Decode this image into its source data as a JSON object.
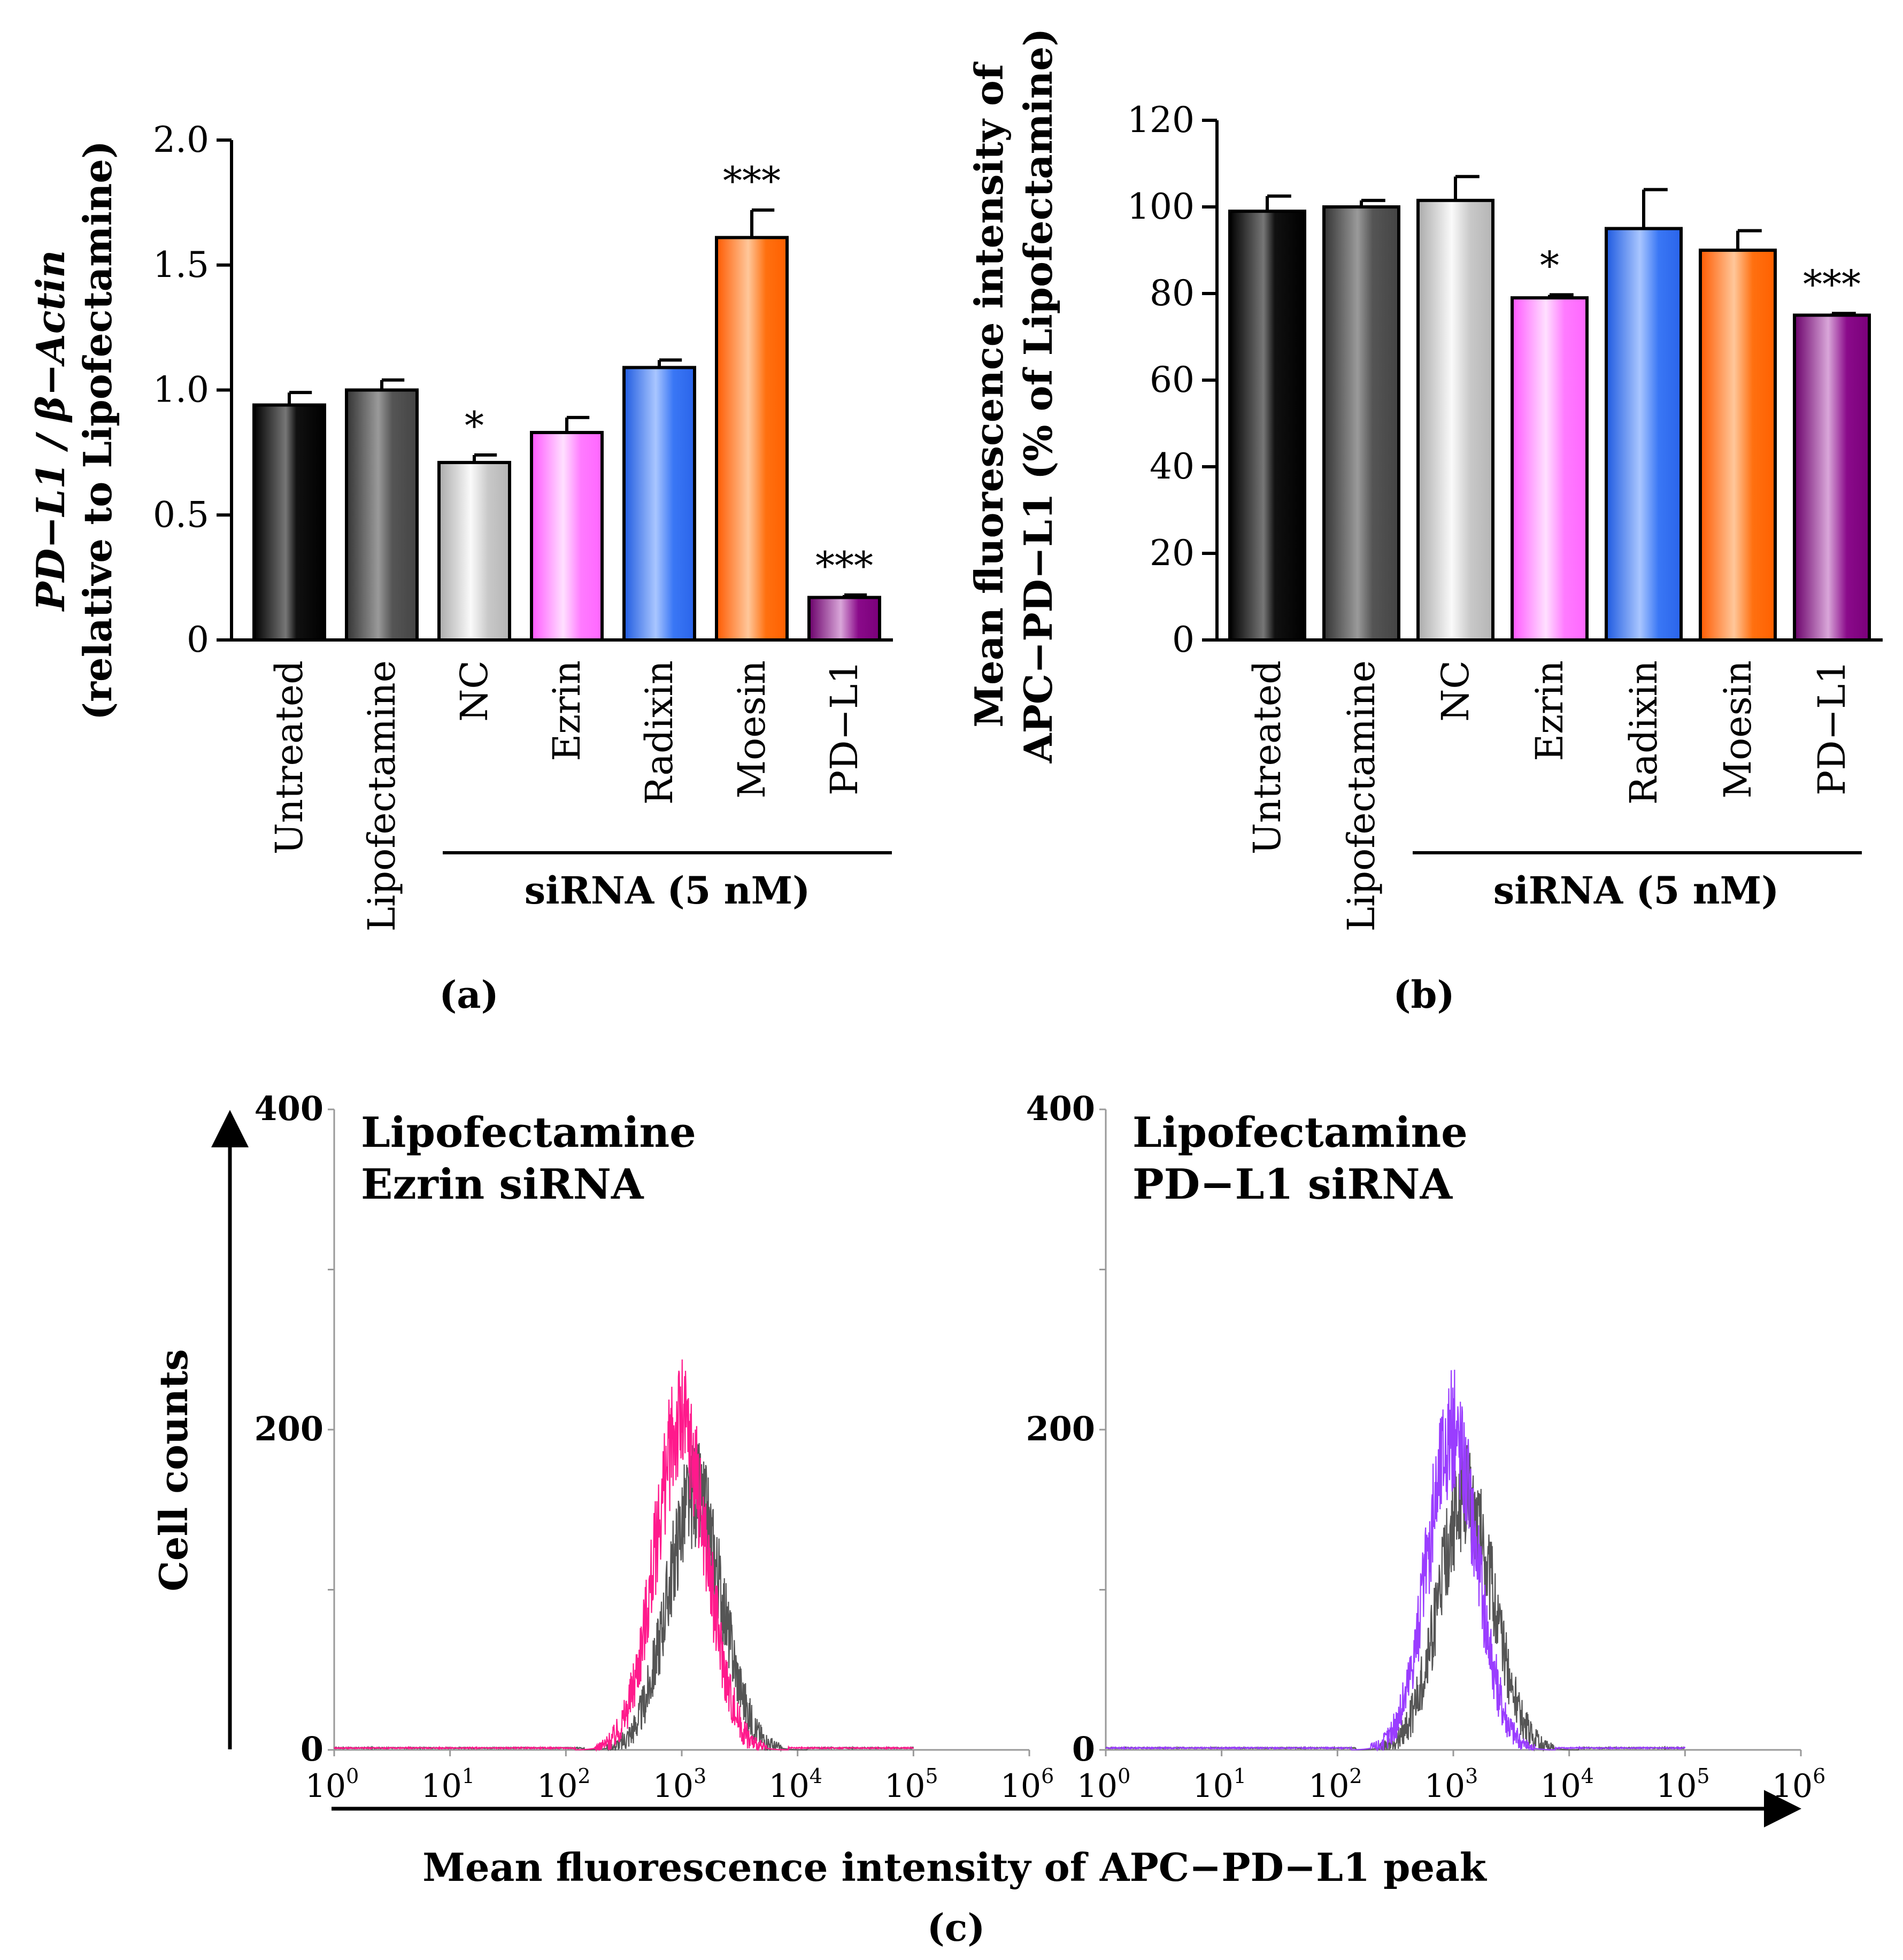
{
  "colors": {
    "untreated": "#0a0a0a",
    "lipofectamine": "#555555",
    "nc": "#c8c8c8",
    "ezrin": "#ff7bff",
    "radixin": "#2f6cf0",
    "moesin": "#ff6a00",
    "pdl1": "#8a0a8a",
    "hist_lipofectamine": "#555555",
    "hist_ezrin": "#ff1a8c",
    "hist_pdl1": "#9a3dff"
  },
  "chart_data": [
    {
      "id": "a",
      "type": "bar",
      "panel_label": "(a)",
      "ylabel_line1_italic": "PD−L1 / β−Actin",
      "ylabel_line2": "(relative to Lipofectamine)",
      "categories": [
        "Untreated",
        "Lipofectamine",
        "NC",
        "Ezrin",
        "Radixin",
        "Moesin",
        "PD−L1"
      ],
      "values": [
        0.94,
        1.0,
        0.71,
        0.83,
        1.09,
        1.61,
        0.17
      ],
      "errors": [
        0.05,
        0.04,
        0.03,
        0.06,
        0.03,
        0.11,
        0.01
      ],
      "significance": [
        "",
        "",
        "*",
        "",
        "",
        "***",
        "***"
      ],
      "ylim": [
        0,
        2.0
      ],
      "yticks": [
        0,
        0.5,
        1.0,
        1.5,
        2.0
      ],
      "ytick_labels": [
        "0",
        "0.5",
        "1.0",
        "1.5",
        "2.0"
      ],
      "group_label": "siRNA (5 nM)",
      "group_from": 2,
      "group_to": 6
    },
    {
      "id": "b",
      "type": "bar",
      "panel_label": "(b)",
      "ylabel_line1": "Mean fluorescence intensity of",
      "ylabel_line2": "APC−PD−L1 (% of Lipofectamine)",
      "categories": [
        "Untreated",
        "Lipofectamine",
        "NC",
        "Ezrin",
        "Radixin",
        "Moesin",
        "PD−L1"
      ],
      "values": [
        99,
        100,
        101.5,
        79,
        95,
        90,
        75
      ],
      "errors": [
        3.5,
        1.5,
        5.5,
        0.7,
        9,
        4.5,
        0.4
      ],
      "significance": [
        "",
        "",
        "",
        "*",
        "",
        "",
        "***"
      ],
      "ylim": [
        0,
        120
      ],
      "yticks": [
        0,
        20,
        40,
        60,
        80,
        100,
        120
      ],
      "ytick_labels": [
        "0",
        "20",
        "40",
        "60",
        "80",
        "100",
        "120"
      ],
      "group_label": "siRNA (5 nM)",
      "group_from": 2,
      "group_to": 6
    },
    {
      "id": "c",
      "type": "line",
      "subtype": "flow-cytometry-histogram",
      "panel_label": "(c)",
      "ylabel": "Cell counts",
      "xlabel": "Mean fluorescence intensity of APC−PD−L1 peak",
      "xscale": "log10",
      "xlim": [
        1,
        1000000
      ],
      "xtick_exponents": [
        "0",
        "1",
        "2",
        "3",
        "4",
        "5",
        "6"
      ],
      "xtick_base": "10",
      "ylim": [
        0,
        400
      ],
      "ytick_labels": [
        "0",
        "200",
        "400"
      ],
      "plots": [
        {
          "legend": [
            "Lipofectamine",
            "Ezrin siRNA"
          ],
          "series": [
            {
              "name": "Lipofectamine",
              "color_key": "hist_lipofectamine",
              "peak_log10": 3.12,
              "spread": 0.24,
              "peak_count": 160
            },
            {
              "name": "Ezrin siRNA",
              "color_key": "hist_ezrin",
              "peak_log10": 3.0,
              "spread": 0.23,
              "peak_count": 205
            }
          ]
        },
        {
          "legend": [
            "Lipofectamine",
            "PD−L1 siRNA"
          ],
          "series": [
            {
              "name": "Lipofectamine",
              "color_key": "hist_lipofectamine",
              "peak_log10": 3.12,
              "spread": 0.24,
              "peak_count": 160
            },
            {
              "name": "PD−L1 siRNA",
              "color_key": "hist_pdl1",
              "peak_log10": 3.0,
              "spread": 0.22,
              "peak_count": 200
            }
          ]
        }
      ]
    }
  ]
}
